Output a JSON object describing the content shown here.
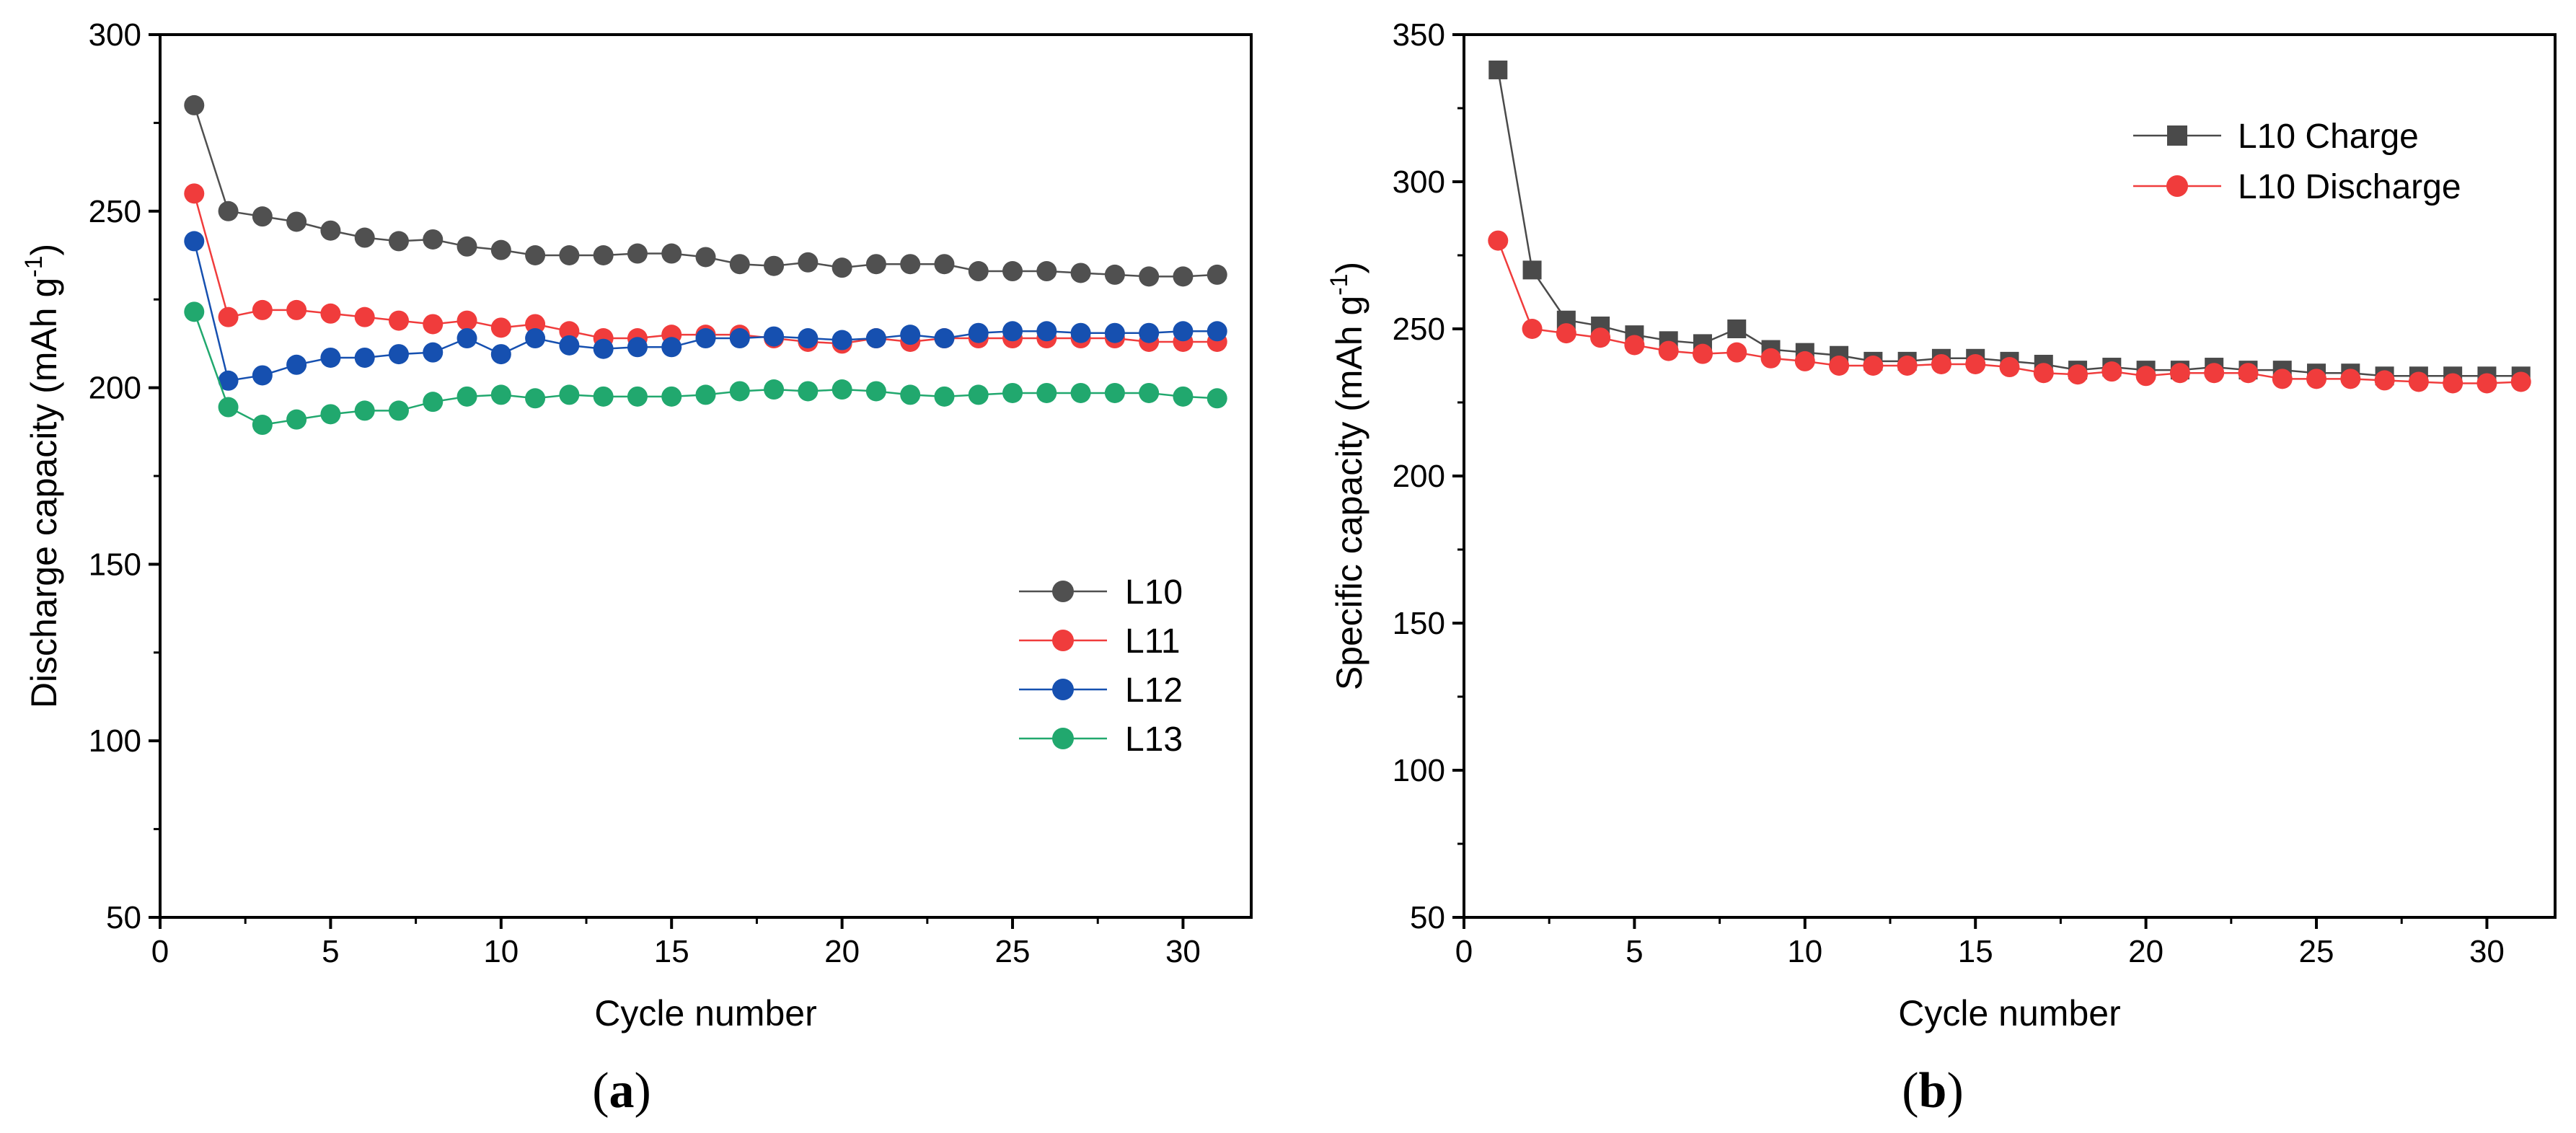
{
  "chart_data": [
    {
      "id": "a",
      "type": "line",
      "panel_label": "a",
      "xlabel": "Cycle number",
      "ylabel": "Discharge capacity (mAh g",
      "ylabel_sup": "-1",
      "ylabel_close": ")",
      "xlim": [
        0,
        32
      ],
      "ylim": [
        50,
        300
      ],
      "xticks": [
        0,
        5,
        10,
        15,
        20,
        25,
        30
      ],
      "yticks": [
        50,
        100,
        150,
        200,
        250,
        300
      ],
      "legend_position": "center-right",
      "x": [
        1,
        2,
        3,
        4,
        5,
        6,
        7,
        8,
        9,
        10,
        11,
        12,
        13,
        14,
        15,
        16,
        17,
        18,
        19,
        20,
        21,
        22,
        23,
        24,
        25,
        26,
        27,
        28,
        29,
        30,
        31
      ],
      "series": [
        {
          "name": "L10",
          "color": "#505050",
          "marker": "circle",
          "values": [
            280,
            250,
            248.5,
            247,
            244.5,
            242.5,
            241.5,
            242,
            240,
            239,
            237.5,
            237.5,
            237.5,
            238,
            238,
            237,
            235,
            234.5,
            235.5,
            234,
            235,
            235,
            235,
            233,
            233,
            233,
            232.5,
            232,
            231.5,
            231.5,
            232
          ]
        },
        {
          "name": "L11",
          "color": "#f03c3c",
          "marker": "circle",
          "values": [
            255,
            220,
            222,
            222,
            221,
            220,
            219,
            218,
            219,
            217,
            218,
            216,
            214,
            214,
            215,
            215,
            215,
            214,
            213,
            212.5,
            214,
            213,
            214,
            214,
            214,
            214,
            214,
            214,
            213,
            213,
            213
          ]
        },
        {
          "name": "L12",
          "color": "#1650b0",
          "marker": "circle",
          "values": [
            241.5,
            202,
            203.5,
            206.5,
            208.5,
            208.5,
            209.5,
            210,
            214,
            209.5,
            214,
            212,
            211,
            211.5,
            211.5,
            214,
            214,
            214.5,
            214,
            213.5,
            214,
            215,
            214,
            215.5,
            216,
            216,
            215.5,
            215.5,
            215.5,
            216,
            216
          ]
        },
        {
          "name": "L13",
          "color": "#21a86e",
          "marker": "circle",
          "values": [
            221.5,
            194.5,
            189.5,
            191,
            192.5,
            193.5,
            193.5,
            196,
            197.5,
            198,
            197,
            198,
            197.5,
            197.5,
            197.5,
            198,
            199,
            199.5,
            199,
            199.5,
            199,
            198,
            197.5,
            198,
            198.5,
            198.5,
            198.5,
            198.5,
            198.5,
            197.5,
            197
          ]
        }
      ]
    },
    {
      "id": "b",
      "type": "line",
      "panel_label": "b",
      "xlabel": "Cycle number",
      "ylabel": "Specific capacity (mAh g",
      "ylabel_sup": "-1",
      "ylabel_close": ")",
      "xlim": [
        0,
        32
      ],
      "ylim": [
        50,
        350
      ],
      "xticks": [
        0,
        5,
        10,
        15,
        20,
        25,
        30
      ],
      "yticks": [
        50,
        100,
        150,
        200,
        250,
        300,
        350
      ],
      "legend_position": "top-right",
      "x": [
        1,
        2,
        3,
        4,
        5,
        6,
        7,
        8,
        9,
        10,
        11,
        12,
        13,
        14,
        15,
        16,
        17,
        18,
        19,
        20,
        21,
        22,
        23,
        24,
        25,
        26,
        27,
        28,
        29,
        30,
        31
      ],
      "series": [
        {
          "name": "L10 Charge",
          "color": "#4a4a4a",
          "marker": "square",
          "values": [
            338,
            270,
            253,
            251,
            248,
            246,
            245,
            250,
            243,
            242,
            241,
            239,
            239,
            240,
            240,
            239,
            238,
            236,
            237,
            236,
            236,
            237,
            236,
            236,
            235,
            235,
            234,
            234,
            234,
            234,
            234
          ]
        },
        {
          "name": "L10 Discharge",
          "color": "#f03c3c",
          "marker": "circle",
          "values": [
            280,
            250,
            248.5,
            247,
            244.5,
            242.5,
            241.5,
            242,
            240,
            239,
            237.5,
            237.5,
            237.5,
            238,
            238,
            237,
            235,
            234.5,
            235.5,
            234,
            235,
            235,
            235,
            233,
            233,
            233,
            232.5,
            232,
            231.5,
            231.5,
            232
          ]
        }
      ]
    }
  ]
}
